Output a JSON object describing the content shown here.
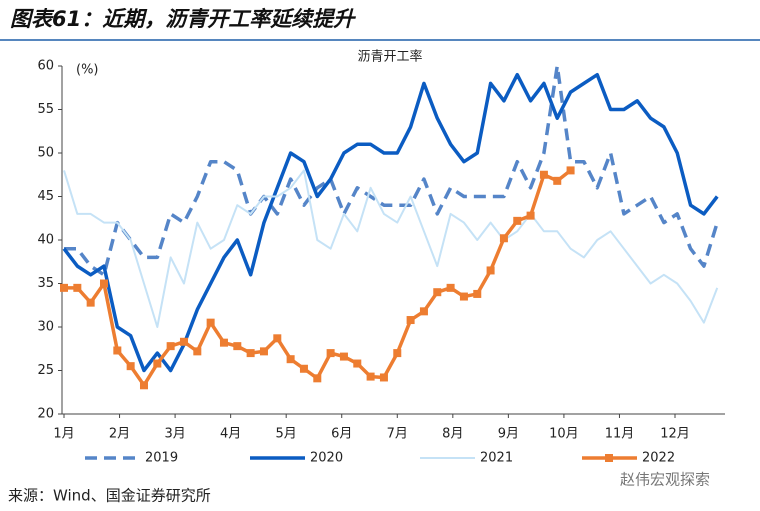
{
  "header": {
    "title": "图表61：近期，沥青开工率延续提升"
  },
  "chart_data": {
    "type": "line",
    "title": "沥青开工率",
    "y_unit": "(%)",
    "x": [
      1,
      1.24,
      1.48,
      1.72,
      1.96,
      2.2,
      2.44,
      2.68,
      2.92,
      3.16,
      3.4,
      3.64,
      3.88,
      4.12,
      4.36,
      4.6,
      4.84,
      5.08,
      5.32,
      5.56,
      5.8,
      6.04,
      6.28,
      6.52,
      6.76,
      7,
      7.24,
      7.48,
      7.72,
      7.96,
      8.2,
      8.44,
      8.68,
      8.92,
      9.16,
      9.4,
      9.64,
      9.88,
      10.12,
      10.36,
      10.6,
      10.84,
      11.08,
      11.32,
      11.56,
      11.8,
      12.04,
      12.28,
      12.52,
      12.76
    ],
    "xlim": [
      1,
      12.9
    ],
    "xticks": [
      {
        "value": 1,
        "label": "1月"
      },
      {
        "value": 2,
        "label": "2月"
      },
      {
        "value": 3,
        "label": "3月"
      },
      {
        "value": 4,
        "label": "4月"
      },
      {
        "value": 5,
        "label": "5月"
      },
      {
        "value": 6,
        "label": "6月"
      },
      {
        "value": 7,
        "label": "7月"
      },
      {
        "value": 8,
        "label": "8月"
      },
      {
        "value": 9,
        "label": "9月"
      },
      {
        "value": 10,
        "label": "10月"
      },
      {
        "value": 11,
        "label": "11月"
      },
      {
        "value": 12,
        "label": "12月"
      }
    ],
    "ylim": [
      20,
      60
    ],
    "yticks": [
      20,
      25,
      30,
      35,
      40,
      45,
      50,
      55,
      60
    ],
    "grid": false,
    "series": [
      {
        "name": "2019",
        "color": "#5585c8",
        "dash": true,
        "width": 3.5,
        "values": [
          39,
          39,
          37,
          36,
          42,
          40,
          38,
          38,
          43,
          42,
          45,
          49,
          49,
          48,
          43,
          45,
          43,
          47,
          44,
          46,
          47,
          43,
          46,
          45,
          44,
          44,
          44,
          47,
          43,
          46,
          45,
          45,
          45,
          45,
          49,
          46,
          50,
          60,
          49,
          49,
          46,
          50,
          43,
          44,
          45,
          42,
          43,
          39,
          37,
          42
        ]
      },
      {
        "name": "2020",
        "color": "#0b5cc2",
        "dash": false,
        "width": 3.5,
        "values": [
          39,
          37,
          36,
          37,
          30,
          29,
          25,
          27,
          25,
          28,
          32,
          35,
          38,
          40,
          36,
          42,
          46,
          50,
          49,
          45,
          47,
          50,
          51,
          51,
          50,
          50,
          53,
          58,
          54,
          51,
          49,
          50,
          58,
          56,
          59,
          56,
          58,
          54,
          57,
          58,
          59,
          55,
          55,
          56,
          54,
          53,
          50,
          44,
          43,
          45
        ]
      },
      {
        "name": "2021",
        "color": "#c5e2f6",
        "dash": false,
        "width": 2,
        "values": [
          48,
          43,
          43,
          42,
          42,
          40,
          35,
          30,
          38,
          35,
          42,
          39,
          40,
          44,
          43,
          45,
          45,
          46,
          48,
          40,
          39,
          43,
          41,
          46,
          43,
          42,
          45,
          41,
          37,
          43,
          42,
          40,
          42,
          40,
          41,
          43,
          41,
          41,
          39,
          38,
          40,
          41,
          39,
          37,
          35,
          36,
          35,
          33,
          30.5,
          34.5
        ]
      },
      {
        "name": "2022",
        "color": "#ed7d31",
        "dash": false,
        "width": 3.5,
        "marker": "square",
        "values": [
          34.5,
          34.5,
          32.8,
          35,
          27.3,
          25.5,
          23.3,
          25.8,
          27.8,
          28.3,
          27.2,
          30.5,
          28.2,
          27.8,
          27,
          27.2,
          28.7,
          26.3,
          25.2,
          24.1,
          27,
          26.6,
          25.8,
          24.3,
          24.2,
          27,
          30.8,
          31.8,
          34,
          34.5,
          33.5,
          33.8,
          36.5,
          40.2,
          42.2,
          42.8,
          47.5,
          46.8,
          48,
          null,
          null,
          null,
          null,
          null,
          null,
          null,
          null,
          null,
          null,
          null
        ]
      }
    ]
  },
  "footer": {
    "source": "来源：Wind、国金证券研究所",
    "watermark": "赵伟宏观探索"
  }
}
